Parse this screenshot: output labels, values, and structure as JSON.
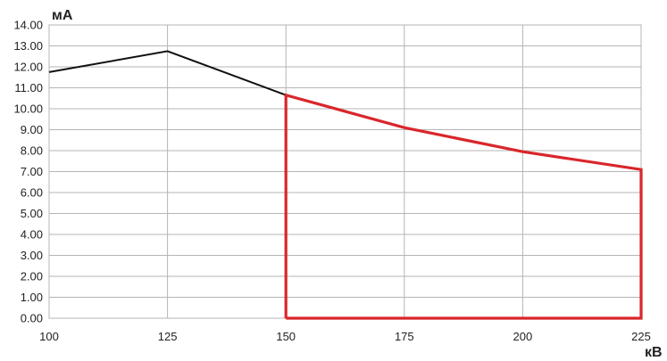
{
  "chart_data": {
    "type": "line",
    "title": "",
    "ylabel": "мА",
    "xlabel": "кВ",
    "xlim": [
      100,
      225
    ],
    "ylim": [
      0,
      14
    ],
    "x_ticks": [
      "100",
      "125",
      "150",
      "175",
      "200",
      "225"
    ],
    "y_ticks": [
      "0.00",
      "1.00",
      "2.00",
      "3.00",
      "4.00",
      "5.00",
      "6.00",
      "7.00",
      "8.00",
      "9.00",
      "10.00",
      "11.00",
      "12.00",
      "13.00",
      "14.00"
    ],
    "grid": true,
    "series": [
      {
        "color": "#111111",
        "points": [
          [
            100,
            11.75
          ],
          [
            125,
            12.75
          ],
          [
            150,
            10.65
          ]
        ]
      },
      {
        "color": "#d9262b",
        "points": [
          [
            150,
            0
          ],
          [
            150,
            10.65
          ],
          [
            175,
            9.1
          ],
          [
            200,
            7.95
          ],
          [
            225,
            7.1
          ],
          [
            225,
            0
          ],
          [
            150,
            0
          ]
        ]
      }
    ]
  }
}
